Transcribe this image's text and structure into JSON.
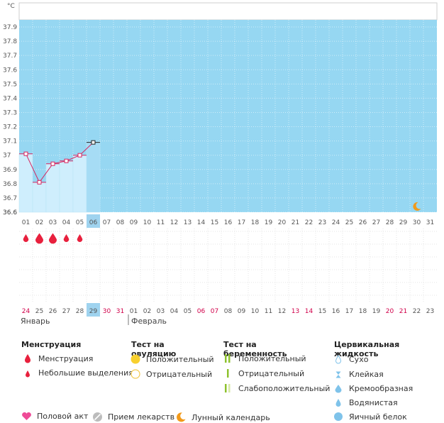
{
  "chart_data": {
    "type": "line",
    "unit_label": "°C",
    "y_ticks": [
      "37.9",
      "37.8",
      "37.7",
      "37.6",
      "37.5",
      "37.4",
      "37.3",
      "37.2",
      "37.1",
      "37",
      "36.9",
      "36.8",
      "36.7",
      "36.6"
    ],
    "ylim": [
      36.6,
      37.95
    ],
    "cycle_days": [
      "01",
      "02",
      "03",
      "04",
      "05",
      "06",
      "07",
      "08",
      "09",
      "10",
      "11",
      "12",
      "13",
      "14",
      "15",
      "16",
      "17",
      "18",
      "19",
      "20",
      "21",
      "22",
      "23",
      "24",
      "25",
      "26",
      "27",
      "28",
      "29",
      "30",
      "31"
    ],
    "current_day_index": 5,
    "temperatures": [
      {
        "day": "01",
        "value": 37.01
      },
      {
        "day": "02",
        "value": 36.81
      },
      {
        "day": "03",
        "value": 36.94
      },
      {
        "day": "04",
        "value": 36.96
      },
      {
        "day": "05",
        "value": 37.0
      },
      {
        "day": "06",
        "value": 37.09
      }
    ],
    "menstruation": [
      {
        "day": "01",
        "kind": "light"
      },
      {
        "day": "02",
        "kind": "heavy"
      },
      {
        "day": "03",
        "kind": "heavy"
      },
      {
        "day": "04",
        "kind": "light"
      },
      {
        "day": "05",
        "kind": "light"
      }
    ],
    "moon_day_index": 29,
    "calendar_dates": [
      {
        "label": "24",
        "red": true
      },
      {
        "label": "25",
        "red": false
      },
      {
        "label": "26",
        "red": false
      },
      {
        "label": "27",
        "red": false
      },
      {
        "label": "28",
        "red": false
      },
      {
        "label": "29",
        "red": false
      },
      {
        "label": "30",
        "red": true
      },
      {
        "label": "31",
        "red": true
      },
      {
        "label": "01",
        "red": false
      },
      {
        "label": "02",
        "red": false
      },
      {
        "label": "03",
        "red": false
      },
      {
        "label": "04",
        "red": false
      },
      {
        "label": "05",
        "red": false
      },
      {
        "label": "06",
        "red": true
      },
      {
        "label": "07",
        "red": true
      },
      {
        "label": "08",
        "red": false
      },
      {
        "label": "09",
        "red": false
      },
      {
        "label": "10",
        "red": false
      },
      {
        "label": "11",
        "red": false
      },
      {
        "label": "12",
        "red": false
      },
      {
        "label": "13",
        "red": true
      },
      {
        "label": "14",
        "red": true
      },
      {
        "label": "15",
        "red": false
      },
      {
        "label": "16",
        "red": false
      },
      {
        "label": "17",
        "red": false
      },
      {
        "label": "18",
        "red": false
      },
      {
        "label": "19",
        "red": false
      },
      {
        "label": "20",
        "red": true
      },
      {
        "label": "21",
        "red": true
      },
      {
        "label": "22",
        "red": false
      },
      {
        "label": "23",
        "red": false
      }
    ],
    "month_labels": [
      "Январь",
      "Февраль"
    ]
  },
  "legend": {
    "menstruation": {
      "title": "Менструация",
      "items": [
        "Менструация",
        "Небольшие выделения"
      ]
    },
    "ovulation_test": {
      "title": "Тест на овуляцию",
      "items": [
        "Положительный",
        "Отрицательный"
      ]
    },
    "pregnancy_test": {
      "title": "Тест на беременность",
      "items": [
        "Положительный",
        "Отрицательный",
        "Слабоположительный"
      ]
    },
    "cervical_fluid": {
      "title": "Цервикальная жидкость",
      "items": [
        "Сухо",
        "Клейкая",
        "Кремообразная",
        "Водянистая",
        "Яичный белок"
      ]
    },
    "bottom": [
      "Половой акт",
      "Прием лекарств",
      "Лунный календарь"
    ]
  },
  "colors": {
    "plot_bg": "#96d7f2",
    "filled_col": "#cfeefd",
    "today_col": "#a6dcf5",
    "line": "#d6245f",
    "drop": "#e8203d",
    "red_text": "#d1004a",
    "moon": "#f29a1a",
    "heart": "#ee4b97",
    "ovul_pos": "#f8d02e",
    "ovul_neg_border": "#f2c94c",
    "preg_pos": "#8ec22e",
    "preg_light": "#d7e9a6",
    "fluid": "#7fc3ea",
    "pill": "#bcbcbc"
  }
}
